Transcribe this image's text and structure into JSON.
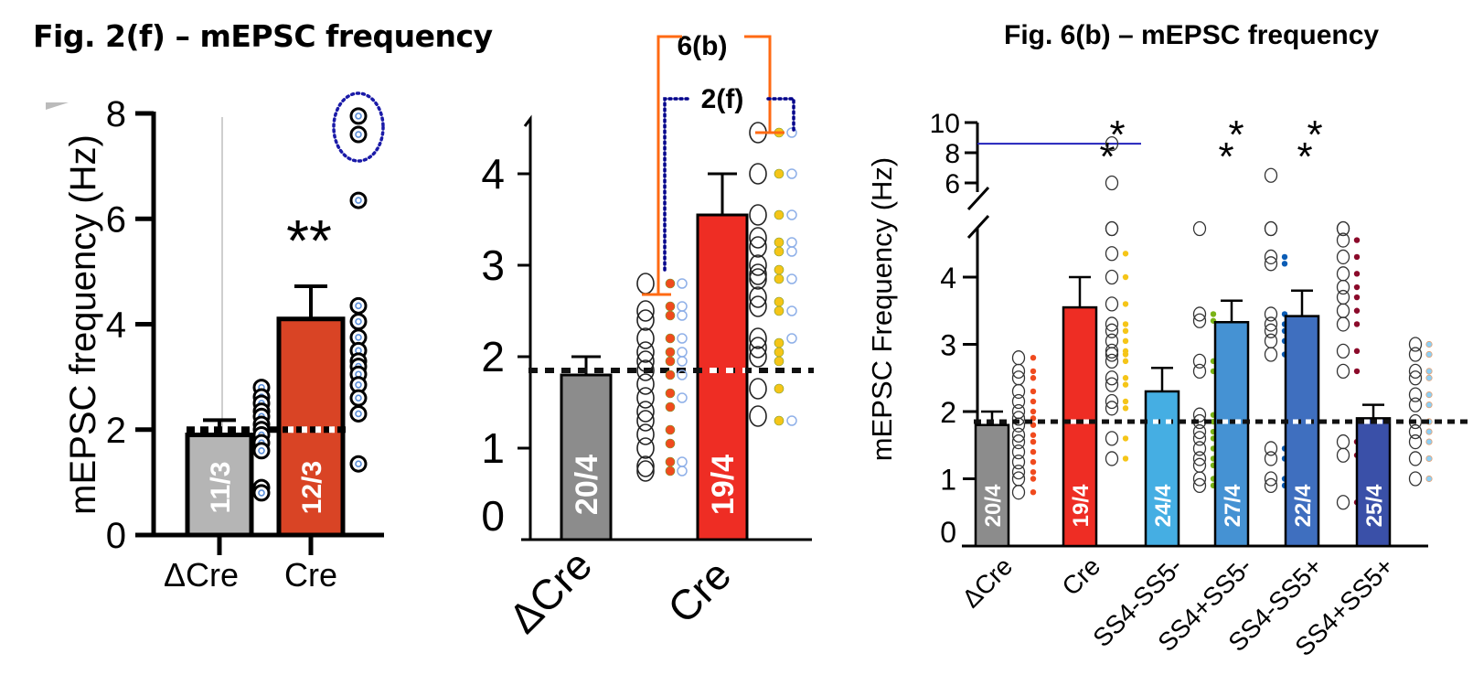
{
  "titles": {
    "left": "Fig. 2(f) – mEPSC frequency",
    "right": "Fig. 6(b) – mEPSC frequency"
  },
  "annotations": {
    "bracket_6b": "6(b)",
    "bracket_2f": "2(f)",
    "bracket_6b_color": "#ff6a13",
    "bracket_2f_color": "#00008b"
  },
  "chart_data": [
    {
      "id": "fig2f",
      "type": "bar",
      "title": "Fig. 2(f) – mEPSC frequency",
      "ylabel": "mEPSC frequency (Hz)",
      "xlabel": "",
      "ylim": [
        0,
        8
      ],
      "yticks": [
        "0",
        "2",
        "4",
        "6",
        "8"
      ],
      "categories": [
        "ΔCre",
        "Cre"
      ],
      "values": [
        1.9,
        4.1
      ],
      "errors": [
        2.18,
        4.72
      ],
      "bar_labels": [
        "11/3",
        "12/3"
      ],
      "bar_colors": [
        "#b5b5b5",
        "#d94425"
      ],
      "reference_line": 2.0,
      "significance": [
        "",
        "**"
      ],
      "points": [
        [
          2.8,
          2.62,
          2.5,
          2.35,
          2.25,
          2.1,
          2.0,
          1.9,
          1.75,
          1.6,
          0.9,
          0.8
        ],
        [
          7.95,
          7.6,
          6.35,
          4.35,
          4.05,
          3.75,
          3.5,
          3.3,
          3.2,
          3.05,
          2.85,
          2.6,
          2.3,
          1.35
        ]
      ],
      "highlighted_points": [
        7.95,
        7.6
      ],
      "point_color": "#5b8fd9"
    },
    {
      "id": "overlay",
      "type": "bar",
      "title": "",
      "ylabel": "",
      "ylim": [
        0,
        4.5
      ],
      "yticks": [
        "0",
        "1",
        "2",
        "3",
        "4"
      ],
      "categories": [
        "ΔCre",
        "Cre"
      ],
      "values": [
        1.8,
        3.55
      ],
      "errors": [
        2.0,
        4.0
      ],
      "bar_labels": [
        "20/4",
        "19/4"
      ],
      "bar_colors": [
        "#8c8c8c",
        "#ee2d24"
      ],
      "reference_line": 1.85,
      "points": [
        [
          2.8,
          2.5,
          2.4,
          2.2,
          2.05,
          1.95,
          1.85,
          1.7,
          1.55,
          1.4,
          1.3,
          1.15,
          1.0,
          0.8,
          0.75
        ],
        [
          4.45,
          4.0,
          3.55,
          3.3,
          3.2,
          3.0,
          2.9,
          2.85,
          2.65,
          2.55,
          2.2,
          2.1,
          2.0,
          1.65,
          1.35
        ]
      ],
      "dots_6b": [
        [
          2.8,
          2.55,
          2.45,
          2.2,
          2.05,
          1.95,
          1.8,
          1.6,
          1.45,
          1.2,
          1.05,
          0.85,
          0.75
        ],
        [
          4.45,
          4.0,
          3.55,
          3.25,
          3.15,
          2.95,
          2.85,
          2.6,
          2.5,
          2.15,
          2.05,
          1.95,
          1.65,
          1.3
        ]
      ],
      "dots_2f": [
        [
          2.8,
          2.55,
          2.45,
          2.2,
          2.05,
          1.95,
          1.8,
          1.55,
          0.85,
          0.75
        ],
        [
          4.45,
          4.0,
          3.55,
          3.25,
          3.15,
          2.85,
          2.5,
          2.2,
          1.3
        ]
      ],
      "dot_colors": {
        "dCre_6b": "#f04a1e",
        "Cre_6b": "#f5c518",
        "ring_2f": "#8fb0e8"
      }
    },
    {
      "id": "fig6b",
      "type": "bar",
      "title": "Fig. 6(b) – mEPSC frequency",
      "ylabel": "mEPSC Frequency (Hz)",
      "ylim": [
        0,
        4.6
      ],
      "yticks": [
        "0",
        "1",
        "2",
        "3",
        "4"
      ],
      "broken_axis_upper_ticks": [
        "6",
        "8",
        "10"
      ],
      "categories": [
        "ΔCre",
        "Cre",
        "SS4-SS5-",
        "SS4+SS5-",
        "SS4-SS5+",
        "SS4+SS5+"
      ],
      "values": [
        1.8,
        3.55,
        2.3,
        3.33,
        3.42,
        1.9
      ],
      "errors": [
        2.0,
        4.0,
        2.65,
        3.65,
        3.8,
        2.1
      ],
      "bar_labels": [
        "20/4",
        "19/4",
        "24/4",
        "27/4",
        "22/4",
        "25/4"
      ],
      "bar_colors": [
        "#8c8c8c",
        "#ee2d24",
        "#45aee3",
        "#4592d3",
        "#3f6fbf",
        "#3a50a8"
      ],
      "reference_line": 1.85,
      "significance": [
        "",
        "**",
        "",
        "**",
        "**",
        ""
      ],
      "outlier_line_value": 8.6,
      "outlier_line_color": "#2222bb",
      "points": [
        [
          2.8,
          2.6,
          2.5,
          2.3,
          2.15,
          2.0,
          1.9,
          1.8,
          1.65,
          1.55,
          1.4,
          1.25,
          1.1,
          1.0,
          0.8
        ],
        [
          8.6,
          6.0,
          5.7,
          5.5,
          4.35,
          4.0,
          3.6,
          3.3,
          3.2,
          3.05,
          2.9,
          2.85,
          2.75,
          2.5,
          2.4,
          2.15,
          2.05,
          1.6,
          1.3
        ],
        [
          5.5,
          3.45,
          3.35,
          2.75,
          2.6,
          1.95,
          1.85,
          1.7,
          1.6,
          1.45,
          1.3,
          1.2,
          1.0,
          0.9
        ],
        [
          6.5,
          5.4,
          5.1,
          4.3,
          4.2,
          3.45,
          3.3,
          3.2,
          3.05,
          2.85,
          1.45,
          1.3,
          1.0,
          0.9
        ],
        [
          5.5,
          4.7,
          4.55,
          4.3,
          4.05,
          3.85,
          3.7,
          3.5,
          3.3,
          2.9,
          2.6,
          1.55,
          1.35,
          0.65
        ],
        [
          3.0,
          2.85,
          2.6,
          2.5,
          2.25,
          2.1,
          1.85,
          1.7,
          1.55,
          1.3,
          1.0
        ]
      ],
      "dot_colors": [
        "#f04a1e",
        "#f5c518",
        "#7ab317",
        "#0b5cb5",
        "#8b0a2a",
        "#8ccff5"
      ]
    }
  ]
}
